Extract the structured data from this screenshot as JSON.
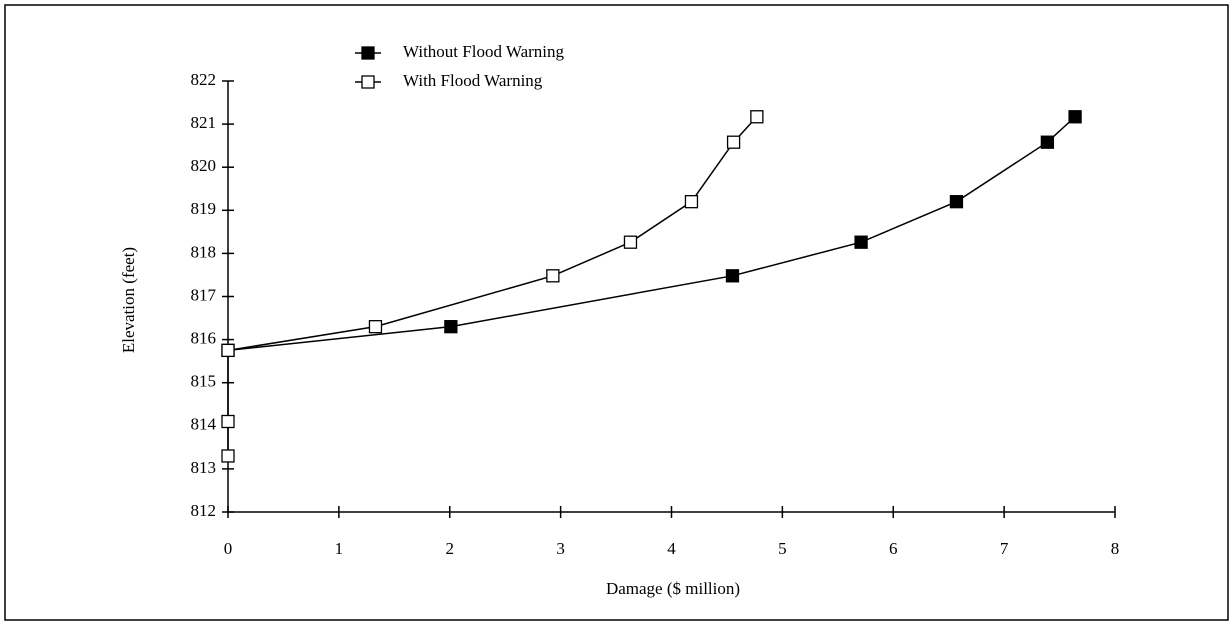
{
  "chart_data": {
    "type": "line",
    "xlabel": "Damage ($ million)",
    "ylabel": "Elevation (feet)",
    "xlim": [
      0,
      8
    ],
    "xticks": [
      0,
      1,
      2,
      3,
      4,
      5,
      6,
      7,
      8
    ],
    "ylim": [
      812,
      822
    ],
    "yticks": [
      812,
      813,
      814,
      815,
      816,
      817,
      818,
      819,
      820,
      821,
      822
    ],
    "legend": "top-left",
    "series": [
      {
        "name": "Without Flood Warning",
        "color": "#000000",
        "marker": "filled",
        "x": [
          0,
          2.01,
          4.55,
          5.71,
          6.57,
          7.39,
          7.64
        ],
        "values": [
          815.75,
          816.3,
          817.48,
          818.26,
          819.2,
          820.58,
          821.17
        ]
      },
      {
        "name": "With Flood Warning",
        "color": "#000000",
        "marker": "hollow",
        "x": [
          0,
          0,
          0,
          1.33,
          2.93,
          3.63,
          4.18,
          4.56,
          4.77
        ],
        "values": [
          813.3,
          814.1,
          815.75,
          816.3,
          817.48,
          818.26,
          819.2,
          820.58,
          821.17
        ]
      }
    ]
  }
}
